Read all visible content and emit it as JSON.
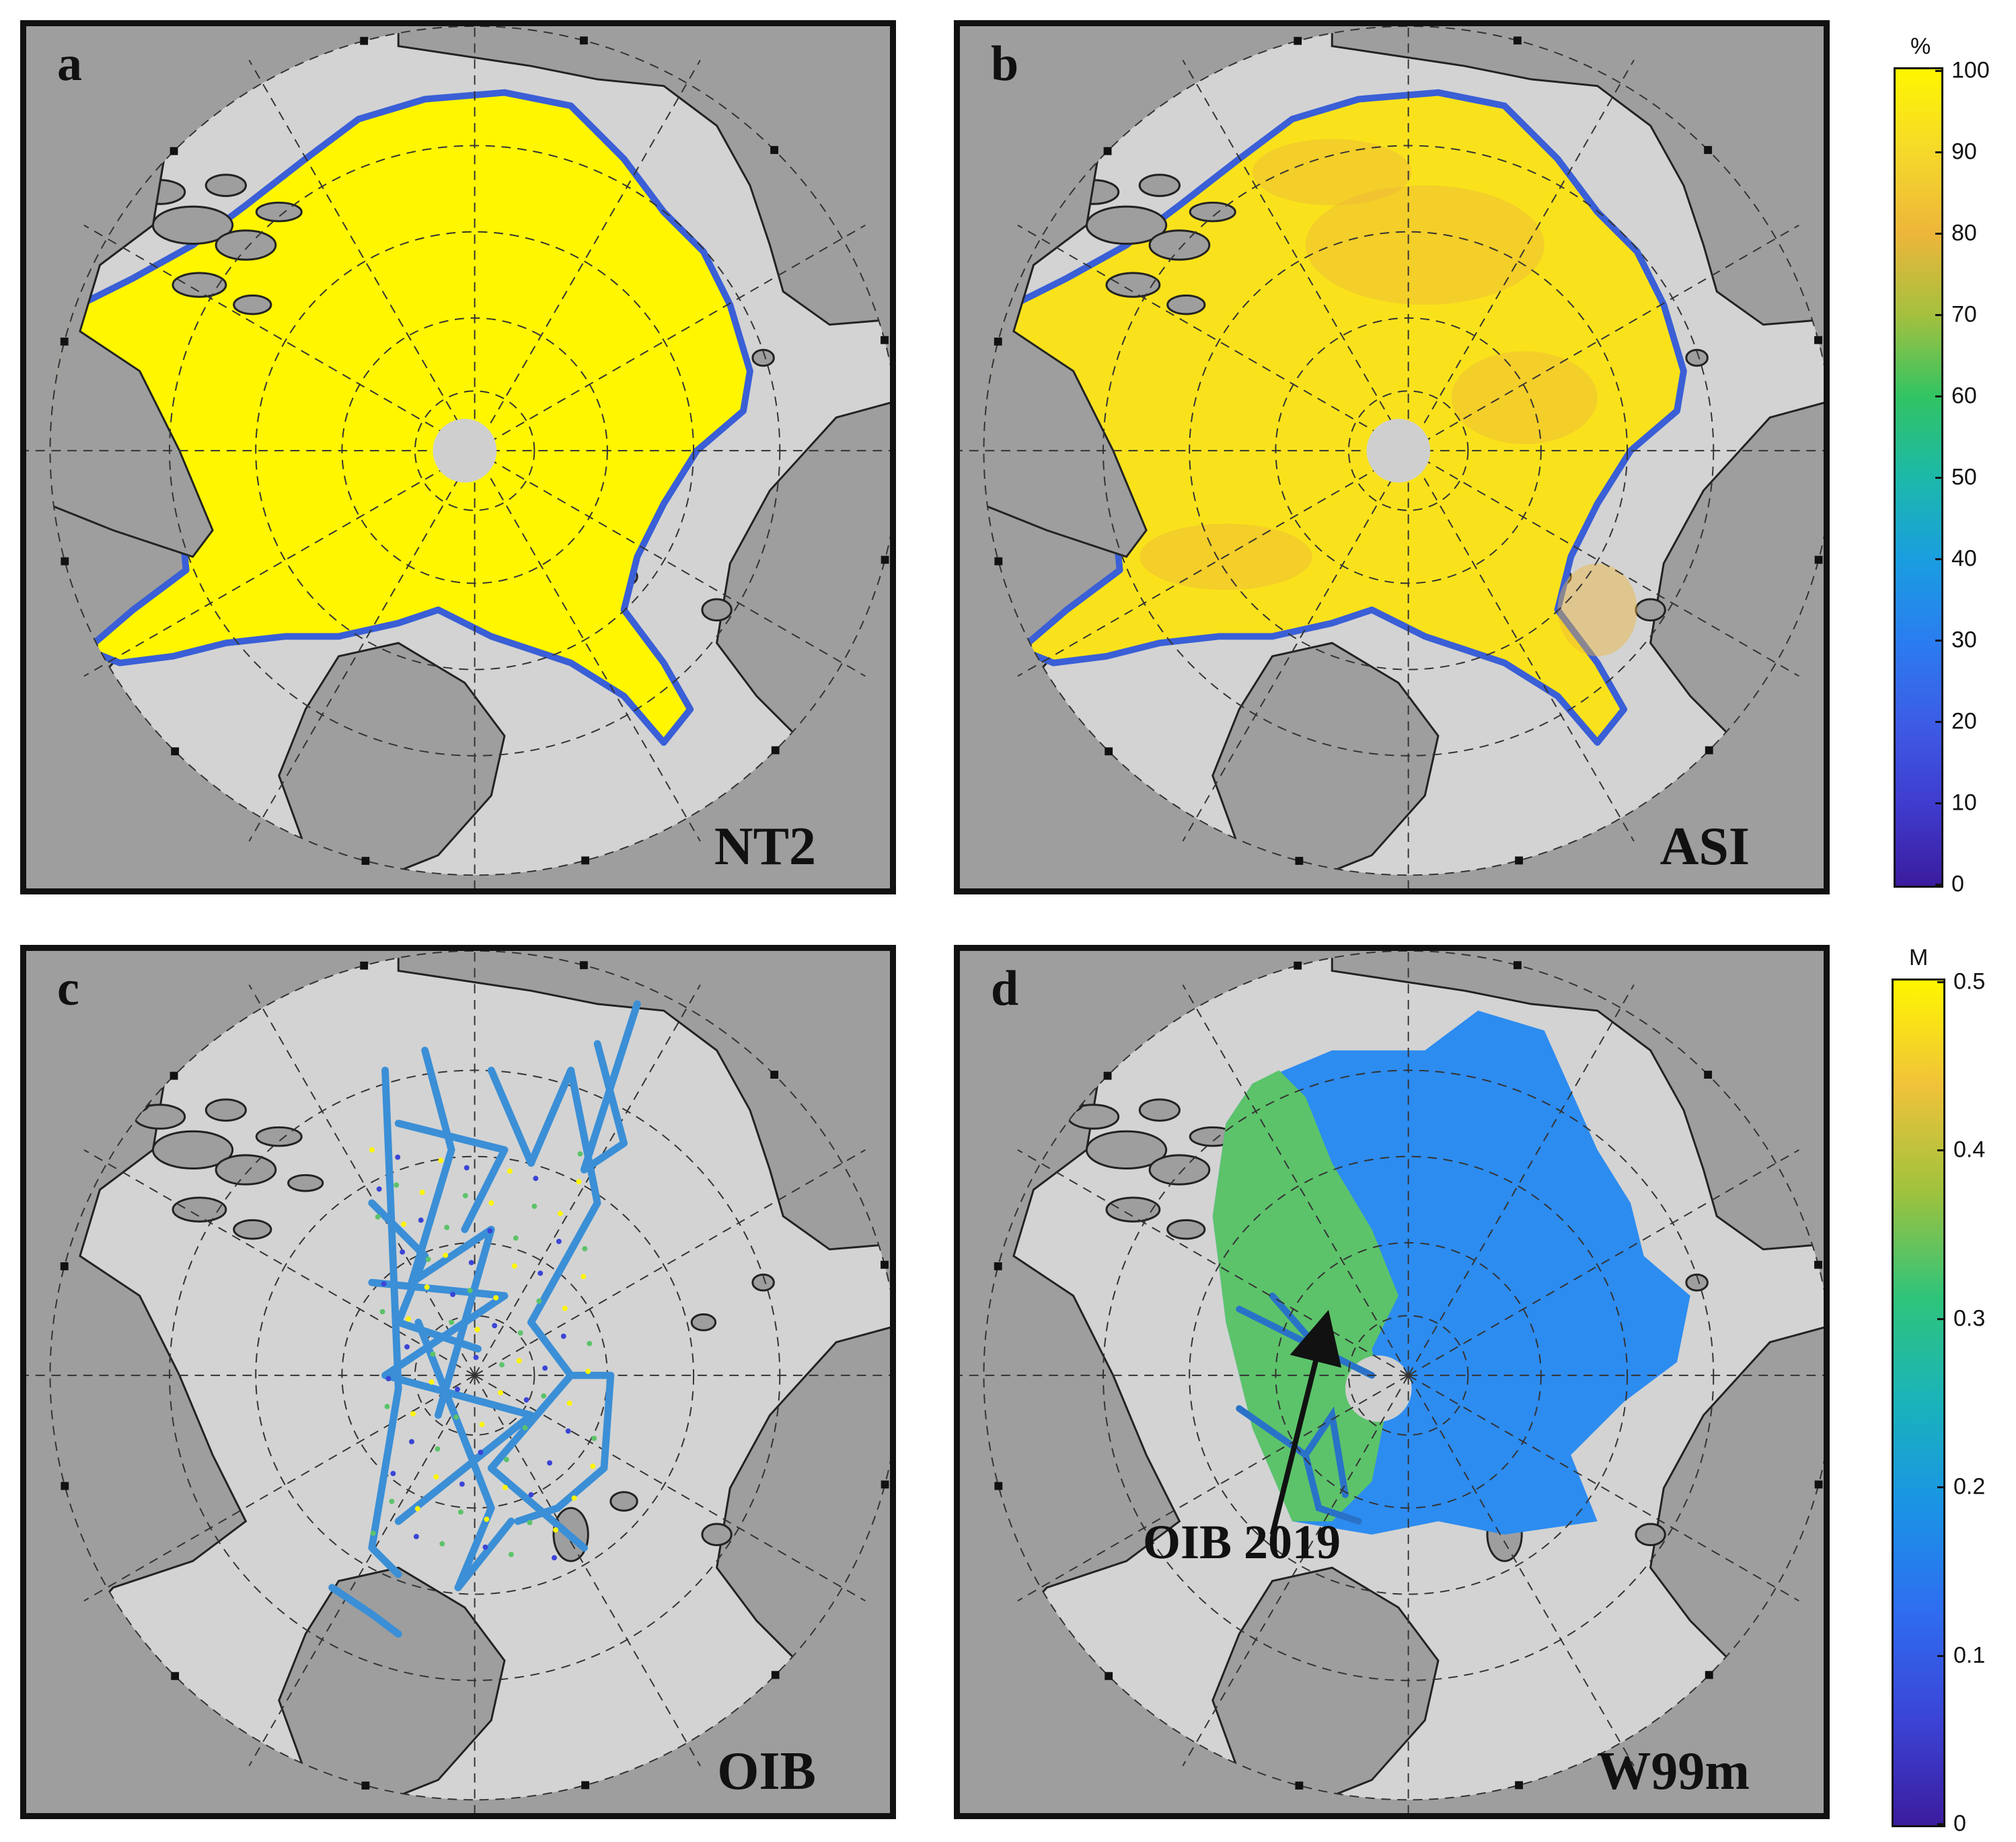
{
  "panels": [
    {
      "letter": "a",
      "name": "NT2",
      "variable": "sea-ice-concentration"
    },
    {
      "letter": "b",
      "name": "ASI",
      "variable": "sea-ice-concentration"
    },
    {
      "letter": "c",
      "name": "OIB",
      "variable": "snow-depth-tracks"
    },
    {
      "letter": "d",
      "name": "W99m",
      "variable": "snow-depth"
    }
  ],
  "annotation": {
    "text": "OIB 2019"
  },
  "colorbars": [
    {
      "unit": "%",
      "ticks": [
        "100",
        "90",
        "80",
        "70",
        "60",
        "50",
        "40",
        "30",
        "20",
        "10",
        "0"
      ],
      "colormap": [
        "#fff600",
        "#f5d92a",
        "#eeb63a",
        "#a6c03e",
        "#32c463",
        "#1cb9a9",
        "#1a9ee0",
        "#2a7df0",
        "#3d5ce6",
        "#3f3ccf",
        "#3b1c9e"
      ]
    },
    {
      "unit": "M",
      "ticks": [
        "0.5",
        "0.4",
        "0.3",
        "0.2",
        "0.1",
        "0"
      ],
      "colormap": [
        "#fff600",
        "#f0c23a",
        "#9fc23d",
        "#2fc47a",
        "#1ab3bb",
        "#1b93e6",
        "#2f6cf0",
        "#3b44d6",
        "#3b1c9e"
      ]
    }
  ],
  "colors": {
    "land": "#9e9e9e",
    "ocean": "#d3d3d3",
    "ice_yellow": "#fff600",
    "ice_asi": "#f9e21c",
    "ice_edge": "#3a5fd6",
    "w99m_blue": "#2d8cf0",
    "w99m_green": "#5cc36a",
    "oib_track": "#3b8fd6",
    "pole_hole": "#cfcfcf"
  }
}
